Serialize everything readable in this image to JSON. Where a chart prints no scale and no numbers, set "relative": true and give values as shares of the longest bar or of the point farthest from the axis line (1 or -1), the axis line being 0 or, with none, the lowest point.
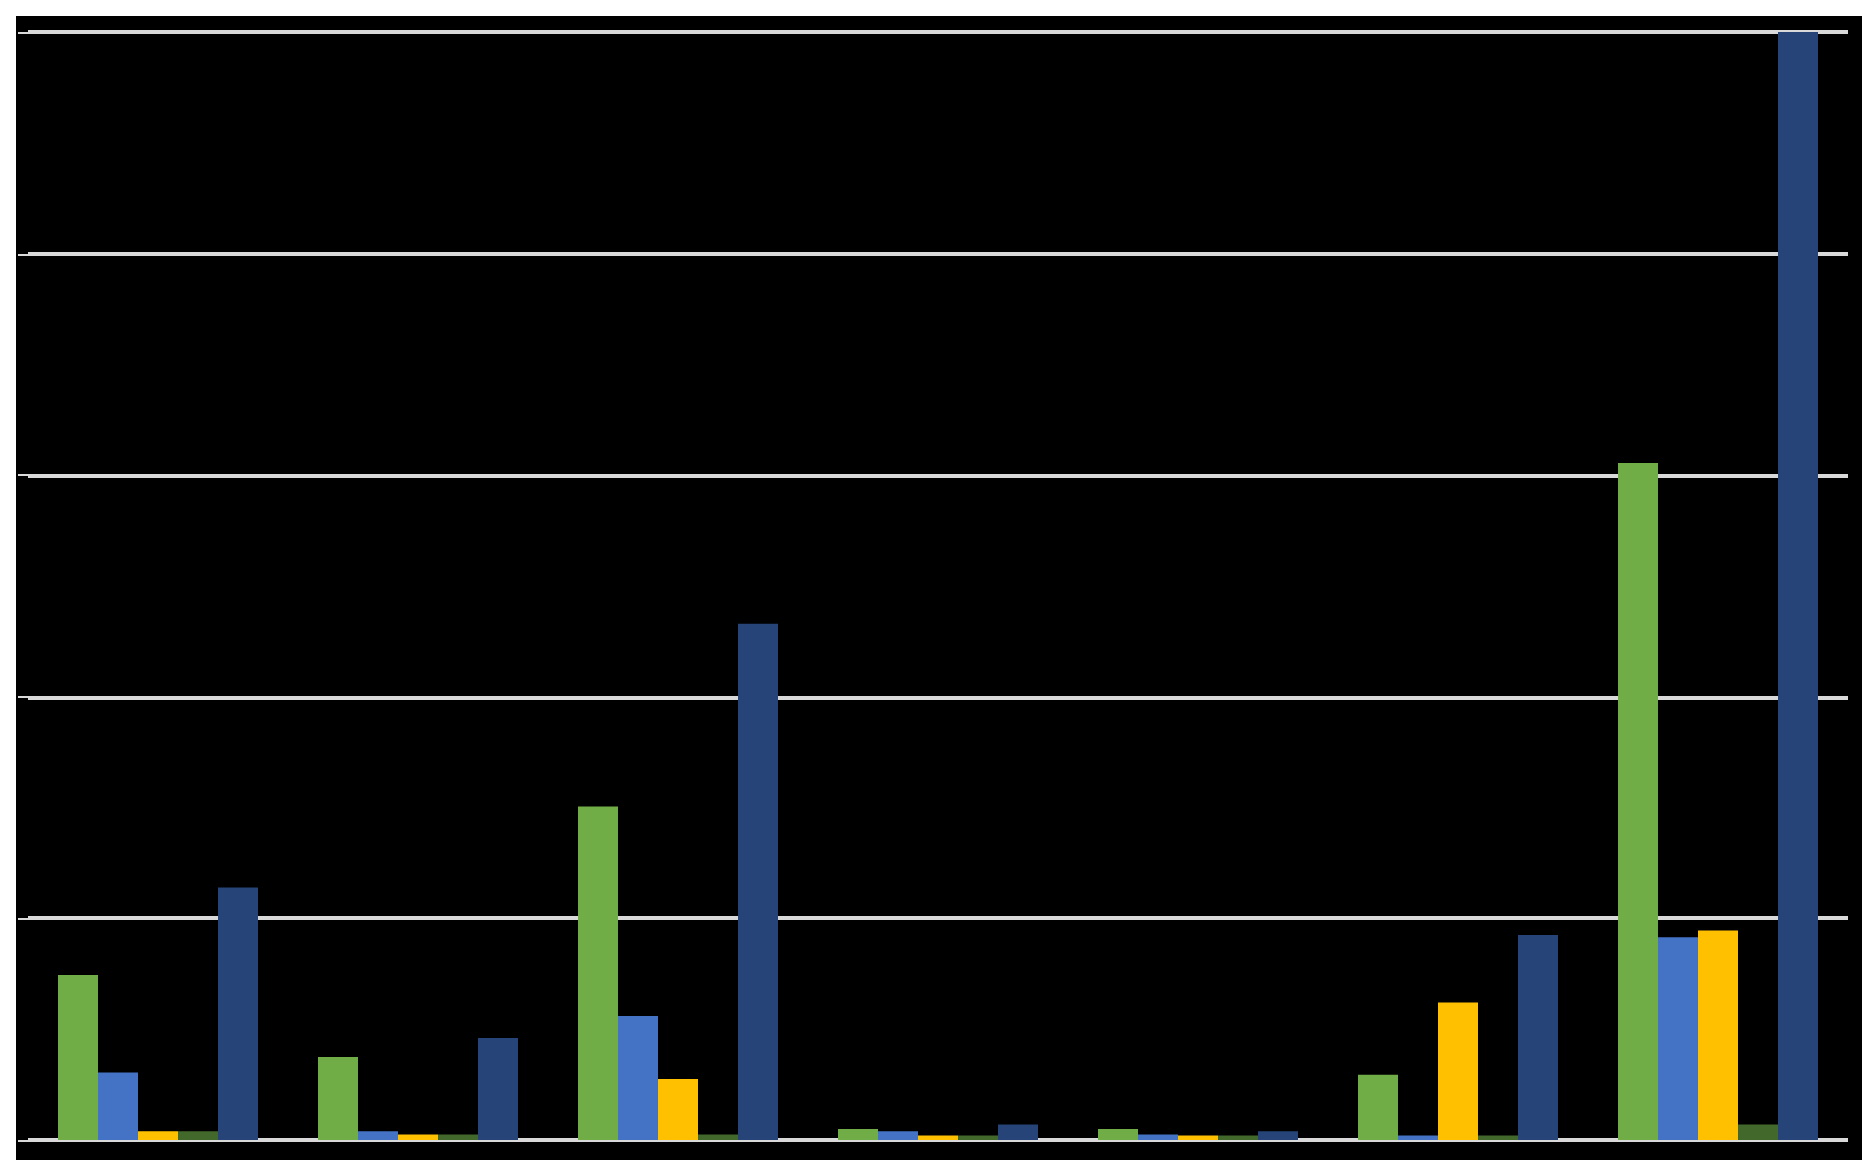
{
  "chart_data": {
    "type": "bar",
    "relative": true,
    "grid": "y",
    "categories": [
      null,
      null,
      null,
      null,
      null,
      null,
      null
    ],
    "series": [
      {
        "color": "#70ad47",
        "values": [
          0.149,
          0.075,
          0.301,
          0.01,
          0.01,
          0.059,
          0.611
        ]
      },
      {
        "color": "#4472c4",
        "values": [
          0.061,
          0.008,
          0.112,
          0.008,
          0.005,
          0.004,
          0.183
        ]
      },
      {
        "color": "#ffc000",
        "values": [
          0.008,
          0.005,
          0.055,
          0.004,
          0.004,
          0.124,
          0.189
        ]
      },
      {
        "color": "#43682b",
        "values": [
          0.008,
          0.005,
          0.005,
          0.004,
          0.004,
          0.004,
          0.014
        ]
      },
      {
        "color": "#264478",
        "values": [
          0.228,
          0.092,
          0.466,
          0.014,
          0.008,
          0.185,
          1
        ]
      }
    ]
  }
}
